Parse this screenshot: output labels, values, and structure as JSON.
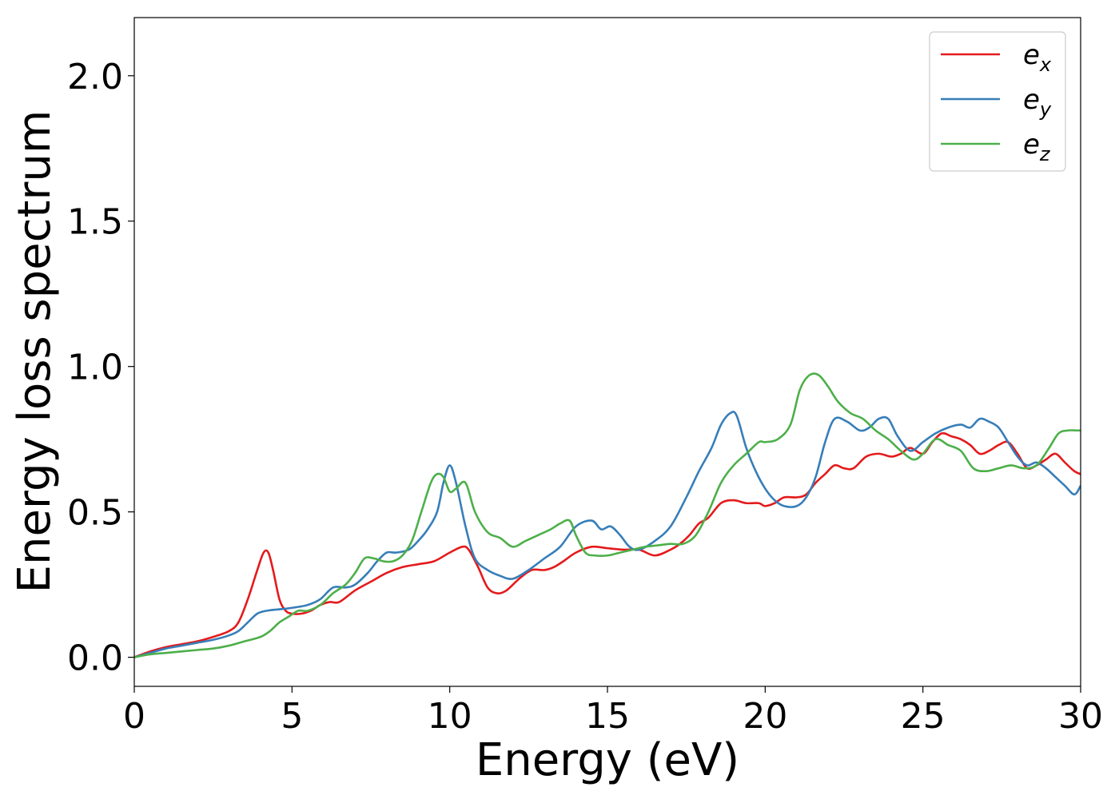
{
  "chart_data": {
    "type": "line",
    "title": "",
    "xlabel": "Energy (eV)",
    "ylabel": "Energy loss spectrum",
    "xlim": [
      0,
      30
    ],
    "ylim": [
      -0.1,
      2.2
    ],
    "xticks": [
      0,
      5,
      10,
      15,
      20,
      25,
      30
    ],
    "xtick_labels": [
      "0",
      "5",
      "10",
      "15",
      "20",
      "25",
      "30"
    ],
    "yticks": [
      0.0,
      0.5,
      1.0,
      1.5,
      2.0
    ],
    "ytick_labels": [
      "0.0",
      "0.5",
      "1.0",
      "1.5",
      "2.0"
    ],
    "grid": false,
    "legend_position": "top-right",
    "series": [
      {
        "name": "e_x",
        "label_base": "e",
        "label_sub": "x",
        "color": "#e41a1c",
        "x": [
          0,
          0.5,
          1,
          1.5,
          2,
          2.5,
          3,
          3.3,
          3.6,
          3.9,
          4.1,
          4.25,
          4.4,
          4.6,
          4.8,
          5,
          5.3,
          5.6,
          5.9,
          6.2,
          6.5,
          7,
          7.5,
          8,
          8.5,
          9,
          9.5,
          10,
          10.4,
          10.6,
          10.9,
          11.2,
          11.5,
          11.8,
          12.2,
          12.6,
          13,
          13.3,
          13.6,
          14,
          14.5,
          15,
          15.5,
          16,
          16.5,
          17,
          17.3,
          17.6,
          17.9,
          18.2,
          18.6,
          19,
          19.4,
          19.8,
          20,
          20.3,
          20.6,
          21,
          21.3,
          21.6,
          21.9,
          22.2,
          22.5,
          22.8,
          23.2,
          23.6,
          24,
          24.3,
          24.6,
          25,
          25.3,
          25.6,
          25.9,
          26.2,
          26.5,
          26.8,
          27.1,
          27.4,
          27.7,
          28,
          28.3,
          28.6,
          28.9,
          29.2,
          29.5,
          29.8,
          30
        ],
        "y": [
          0.0,
          0.02,
          0.035,
          0.045,
          0.055,
          0.07,
          0.09,
          0.12,
          0.2,
          0.3,
          0.36,
          0.36,
          0.3,
          0.2,
          0.16,
          0.15,
          0.15,
          0.16,
          0.18,
          0.19,
          0.19,
          0.23,
          0.26,
          0.29,
          0.31,
          0.32,
          0.33,
          0.36,
          0.38,
          0.37,
          0.31,
          0.24,
          0.22,
          0.23,
          0.27,
          0.3,
          0.3,
          0.31,
          0.33,
          0.36,
          0.38,
          0.375,
          0.37,
          0.37,
          0.35,
          0.37,
          0.39,
          0.42,
          0.46,
          0.48,
          0.53,
          0.54,
          0.53,
          0.53,
          0.52,
          0.53,
          0.55,
          0.55,
          0.56,
          0.6,
          0.63,
          0.66,
          0.65,
          0.65,
          0.69,
          0.7,
          0.69,
          0.7,
          0.72,
          0.7,
          0.74,
          0.77,
          0.76,
          0.75,
          0.73,
          0.7,
          0.71,
          0.73,
          0.74,
          0.7,
          0.65,
          0.66,
          0.68,
          0.7,
          0.67,
          0.64,
          0.63
        ]
      },
      {
        "name": "e_y",
        "label_base": "e",
        "label_sub": "y",
        "color": "#377eb8",
        "x": [
          0,
          0.5,
          1,
          1.5,
          2,
          2.5,
          3,
          3.3,
          3.6,
          3.9,
          4.2,
          4.6,
          5,
          5.5,
          5.9,
          6.3,
          6.7,
          7,
          7.4,
          7.7,
          8,
          8.3,
          8.7,
          9,
          9.3,
          9.6,
          9.8,
          10,
          10.2,
          10.5,
          10.8,
          11.2,
          11.6,
          12,
          12.5,
          13,
          13.5,
          14,
          14.5,
          14.8,
          15.1,
          15.4,
          15.7,
          16,
          16.5,
          17,
          17.5,
          17.9,
          18.3,
          18.6,
          18.9,
          19.1,
          19.4,
          19.7,
          20,
          20.3,
          20.6,
          21,
          21.3,
          21.6,
          21.9,
          22.2,
          22.6,
          23,
          23.3,
          23.6,
          23.9,
          24.2,
          24.6,
          25,
          25.4,
          25.8,
          26.2,
          26.5,
          26.8,
          27.1,
          27.4,
          27.7,
          28,
          28.3,
          28.6,
          28.9,
          29.2,
          29.5,
          29.8,
          30
        ],
        "y": [
          0.0,
          0.015,
          0.03,
          0.04,
          0.05,
          0.06,
          0.075,
          0.09,
          0.12,
          0.15,
          0.16,
          0.165,
          0.17,
          0.18,
          0.2,
          0.24,
          0.24,
          0.25,
          0.29,
          0.33,
          0.36,
          0.36,
          0.37,
          0.4,
          0.44,
          0.5,
          0.6,
          0.66,
          0.6,
          0.45,
          0.34,
          0.3,
          0.28,
          0.27,
          0.3,
          0.34,
          0.38,
          0.45,
          0.47,
          0.44,
          0.45,
          0.42,
          0.38,
          0.37,
          0.4,
          0.45,
          0.55,
          0.64,
          0.72,
          0.8,
          0.84,
          0.83,
          0.72,
          0.64,
          0.58,
          0.54,
          0.52,
          0.52,
          0.55,
          0.62,
          0.74,
          0.82,
          0.81,
          0.78,
          0.79,
          0.82,
          0.82,
          0.76,
          0.71,
          0.74,
          0.77,
          0.79,
          0.8,
          0.79,
          0.82,
          0.81,
          0.79,
          0.74,
          0.69,
          0.66,
          0.67,
          0.65,
          0.62,
          0.59,
          0.56,
          0.59
        ]
      },
      {
        "name": "e_z",
        "label_base": "e",
        "label_sub": "z",
        "color": "#4daf4a",
        "x": [
          0,
          0.5,
          1,
          1.5,
          2,
          2.5,
          3,
          3.5,
          4,
          4.3,
          4.6,
          4.9,
          5.2,
          5.5,
          5.9,
          6.3,
          6.7,
          7,
          7.3,
          7.6,
          7.9,
          8.2,
          8.5,
          8.8,
          9.1,
          9.4,
          9.6,
          9.8,
          10,
          10.2,
          10.5,
          10.8,
          11.2,
          11.6,
          12,
          12.4,
          12.8,
          13.2,
          13.5,
          13.8,
          14,
          14.3,
          14.6,
          15,
          15.4,
          15.8,
          16.2,
          16.6,
          17,
          17.4,
          17.8,
          18.2,
          18.6,
          19,
          19.4,
          19.8,
          20,
          20.4,
          20.8,
          21.1,
          21.4,
          21.7,
          22,
          22.3,
          22.7,
          23.1,
          23.5,
          23.9,
          24.3,
          24.7,
          25,
          25.4,
          25.8,
          26.2,
          26.6,
          27,
          27.4,
          27.8,
          28.2,
          28.6,
          29,
          29.3,
          29.6,
          29.9,
          30
        ],
        "y": [
          0.0,
          0.01,
          0.015,
          0.02,
          0.025,
          0.03,
          0.04,
          0.055,
          0.07,
          0.09,
          0.12,
          0.14,
          0.16,
          0.16,
          0.18,
          0.22,
          0.25,
          0.29,
          0.34,
          0.34,
          0.33,
          0.33,
          0.35,
          0.4,
          0.5,
          0.6,
          0.63,
          0.62,
          0.57,
          0.58,
          0.6,
          0.5,
          0.43,
          0.41,
          0.38,
          0.4,
          0.42,
          0.44,
          0.46,
          0.47,
          0.42,
          0.36,
          0.35,
          0.35,
          0.36,
          0.37,
          0.38,
          0.385,
          0.39,
          0.39,
          0.42,
          0.5,
          0.6,
          0.66,
          0.7,
          0.74,
          0.74,
          0.75,
          0.8,
          0.92,
          0.97,
          0.97,
          0.93,
          0.88,
          0.84,
          0.82,
          0.78,
          0.75,
          0.71,
          0.68,
          0.7,
          0.75,
          0.73,
          0.71,
          0.65,
          0.64,
          0.65,
          0.66,
          0.65,
          0.66,
          0.72,
          0.77,
          0.78,
          0.78,
          0.78
        ]
      }
    ]
  }
}
